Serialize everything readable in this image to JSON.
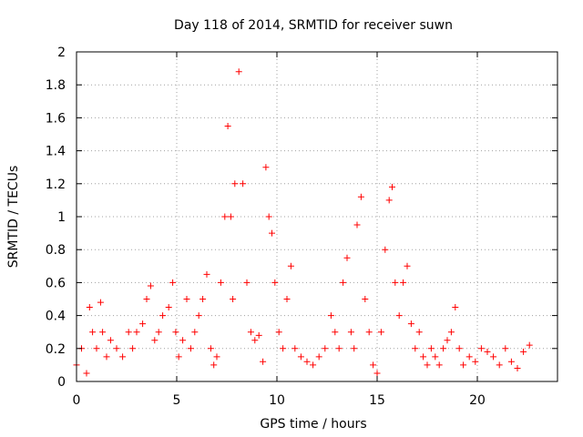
{
  "chart_data": {
    "type": "scatter",
    "title": "Day 118 of 2014, SRMTID for receiver suwn",
    "xlabel": "GPS time / hours",
    "ylabel": "SRMTID / TECUs",
    "xlim": [
      0,
      24
    ],
    "ylim": [
      0,
      2
    ],
    "xticks": [
      0,
      5,
      10,
      15,
      20
    ],
    "xtick_labels": [
      "0",
      "5",
      "10",
      "15",
      "20"
    ],
    "yticks": [
      0,
      0.2,
      0.4,
      0.6,
      0.8,
      1,
      1.2,
      1.4,
      1.6,
      1.8,
      2
    ],
    "ytick_labels": [
      "0",
      "0.2",
      "0.4",
      "0.6",
      "0.8",
      "1",
      "1.2",
      "1.4",
      "1.6",
      "1.8",
      "2"
    ],
    "grid": true,
    "marker": "+",
    "color": "#ff0000",
    "series": [
      {
        "name": "SRMTID",
        "x": [
          0,
          0.25,
          0.5,
          0.65,
          0.8,
          1.0,
          1.2,
          1.3,
          1.5,
          1.7,
          2.0,
          2.3,
          2.6,
          2.8,
          3.0,
          3.3,
          3.5,
          3.7,
          3.9,
          4.1,
          4.3,
          4.6,
          4.8,
          4.95,
          5.1,
          5.3,
          5.5,
          5.7,
          5.9,
          6.1,
          6.3,
          6.5,
          6.7,
          6.85,
          7.0,
          7.2,
          7.4,
          7.55,
          7.7,
          7.8,
          7.9,
          8.1,
          8.3,
          8.5,
          8.7,
          8.9,
          9.1,
          9.3,
          9.45,
          9.6,
          9.75,
          9.9,
          10.1,
          10.3,
          10.5,
          10.7,
          10.9,
          11.2,
          11.5,
          11.8,
          12.1,
          12.4,
          12.7,
          12.9,
          13.1,
          13.3,
          13.5,
          13.7,
          13.85,
          14.0,
          14.2,
          14.4,
          14.6,
          14.8,
          15.0,
          15.2,
          15.4,
          15.6,
          15.75,
          15.9,
          16.1,
          16.3,
          16.5,
          16.7,
          16.9,
          17.1,
          17.3,
          17.5,
          17.7,
          17.9,
          18.1,
          18.3,
          18.5,
          18.7,
          18.9,
          19.1,
          19.3,
          19.6,
          19.9,
          20.2,
          20.5,
          20.8,
          21.1,
          21.4,
          21.7,
          22.0,
          22.3,
          22.6
        ],
        "y": [
          0.1,
          0.2,
          0.05,
          0.45,
          0.3,
          0.2,
          0.48,
          0.3,
          0.15,
          0.25,
          0.2,
          0.15,
          0.3,
          0.2,
          0.3,
          0.35,
          0.5,
          0.58,
          0.25,
          0.3,
          0.4,
          0.45,
          0.6,
          0.3,
          0.15,
          0.25,
          0.5,
          0.2,
          0.3,
          0.4,
          0.5,
          0.65,
          0.2,
          0.1,
          0.15,
          0.6,
          1.0,
          1.55,
          1.0,
          0.5,
          1.2,
          1.88,
          1.2,
          0.6,
          0.3,
          0.25,
          0.28,
          0.12,
          1.3,
          1.0,
          0.9,
          0.6,
          0.3,
          0.2,
          0.5,
          0.7,
          0.2,
          0.15,
          0.12,
          0.1,
          0.15,
          0.2,
          0.4,
          0.3,
          0.2,
          0.6,
          0.75,
          0.3,
          0.2,
          0.95,
          1.12,
          0.5,
          0.3,
          0.1,
          0.05,
          0.3,
          0.8,
          1.1,
          1.18,
          0.6,
          0.4,
          0.6,
          0.7,
          0.35,
          0.2,
          0.3,
          0.15,
          0.1,
          0.2,
          0.15,
          0.1,
          0.2,
          0.25,
          0.3,
          0.45,
          0.2,
          0.1,
          0.15,
          0.12,
          0.2,
          0.18,
          0.15,
          0.1,
          0.2,
          0.12,
          0.08,
          0.18,
          0.22
        ]
      }
    ]
  }
}
